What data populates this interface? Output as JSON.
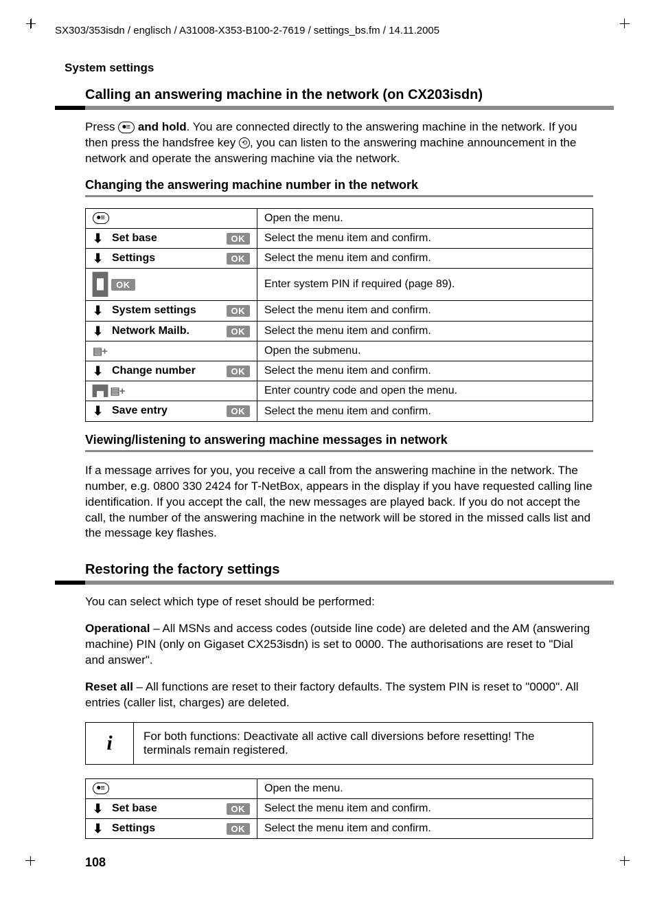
{
  "header_path": "SX303/353isdn / englisch / A31008-X353-B100-2-7619 / settings_bs.fm / 14.11.2005",
  "section_label": "System settings",
  "h2_1": "Calling an answering machine in the network (on CX203isdn)",
  "para_1a": "Press ",
  "para_1_key": "⏺≡",
  "para_1b": " and hold",
  "para_1c": ". You are connected directly to the answering machine in the network. If you then press the handsfree key ",
  "para_1_key2": "⟲",
  "para_1d": ", you can listen to the answering machine announcement in the network and operate the answering machine via the network.",
  "h3_1": "Changing the answering machine number in the network",
  "table1": [
    {
      "icon": "oval",
      "glyph": "⏺≡",
      "label": "",
      "ok": false,
      "desc": "Open the menu."
    },
    {
      "icon": "arrow",
      "label": "Set base",
      "ok": true,
      "desc": "Select the menu item and confirm."
    },
    {
      "icon": "arrow",
      "label": "Settings",
      "ok": true,
      "desc": "Select the menu item and confirm."
    },
    {
      "icon": "keypad",
      "label": "",
      "ok": true,
      "ok_inline": true,
      "desc": "Enter system PIN if required (page 89)."
    },
    {
      "icon": "arrow",
      "label": "System settings",
      "ok": true,
      "desc": "Select the menu item and confirm."
    },
    {
      "icon": "arrow",
      "label": "Network Mailb.",
      "ok": true,
      "desc": "Select the menu item and confirm."
    },
    {
      "icon": "list",
      "label": "",
      "ok": false,
      "desc": "Open the submenu."
    },
    {
      "icon": "arrow",
      "label": "Change number",
      "ok": true,
      "desc": "Select the menu item and confirm."
    },
    {
      "icon": "keypad_list",
      "label": "",
      "ok": false,
      "desc": "Enter country code and open the menu."
    },
    {
      "icon": "arrow",
      "label": "Save entry",
      "ok": true,
      "desc": "Select the menu item and confirm."
    }
  ],
  "h3_2": "Viewing/listening to answering machine messages in network",
  "para_2": "If a message arrives for you, you receive a call from the answering machine in the network. The number, e.g. 0800 330 2424 for T-NetBox, appears in the display if you have requested calling line identification. If you accept the call, the new messages are played back. If you do not accept the call, the number of the answering machine in the network will be stored in the missed calls list and the message key flashes.",
  "h2_2": "Restoring the factory settings",
  "para_3": "You can select which type of reset should be performed:",
  "para_4_b": "Operational",
  "para_4": " – All MSNs and access codes (outside line code) are deleted and the AM (answering machine) PIN (only on Gigaset CX253isdn) is set to 0000. The authorisations are reset to \"Dial and answer\".",
  "para_5_b": "Reset all",
  "para_5": " – All functions are reset to their factory defaults. The system PIN is reset to \"0000\". All entries (caller list, charges) are deleted.",
  "info_icon": "i",
  "info_text": "For both functions: Deactivate all active call diversions before resetting! The terminals remain registered.",
  "table2": [
    {
      "icon": "oval",
      "glyph": "⏺≡",
      "label": "",
      "ok": false,
      "desc": "Open the menu."
    },
    {
      "icon": "arrow",
      "label": "Set base",
      "ok": true,
      "desc": "Select the menu item and confirm."
    },
    {
      "icon": "arrow",
      "label": "Settings",
      "ok": true,
      "desc": "Select the menu item and confirm."
    }
  ],
  "page_number": "108",
  "ok_label": "OK"
}
